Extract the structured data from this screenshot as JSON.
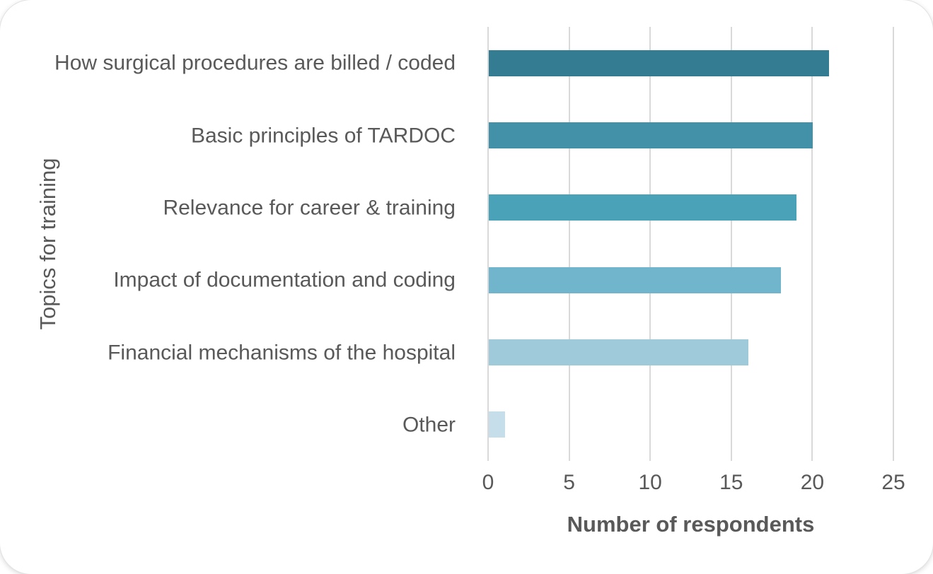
{
  "chart_data": {
    "type": "bar",
    "orientation": "horizontal",
    "title": "",
    "xlabel": "Number of respondents",
    "ylabel": "Topics for training",
    "categories": [
      "How surgical procedures are billed / coded",
      "Basic principles of TARDOC",
      "Relevance for career & training",
      "Impact of documentation and coding",
      "Financial mechanisms of the hospital",
      "Other"
    ],
    "values": [
      21,
      20,
      19,
      18,
      16,
      1
    ],
    "bar_colors": [
      "#347c91",
      "#4291a8",
      "#49a2b8",
      "#71b5cc",
      "#9ecad9",
      "#c6dee9"
    ],
    "xlim": [
      0,
      25
    ],
    "xticks": [
      0,
      5,
      10,
      15,
      20,
      25
    ],
    "grid": "vertical-only",
    "gridline_color": "#d9d9d9",
    "text_color": "#595959",
    "legend": "none"
  }
}
